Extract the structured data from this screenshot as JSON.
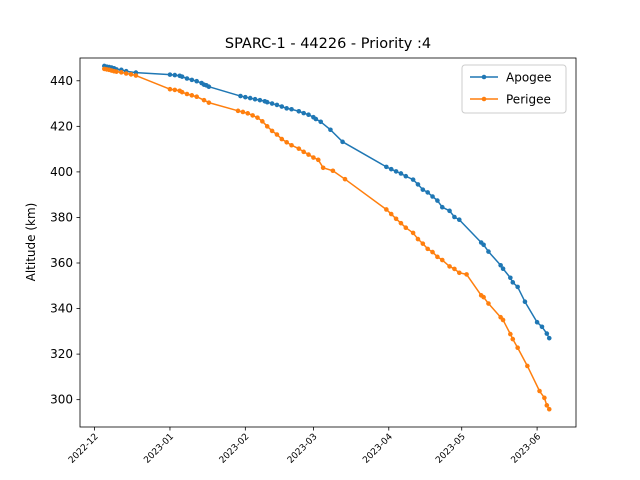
{
  "chart_data": {
    "type": "line",
    "title": "SPARC-1 - 44226 - Priority :4",
    "xlabel": "",
    "ylabel": "Altitude (km)",
    "xlim": [
      "2022-11-25",
      "2023-06-17"
    ],
    "ylim": [
      288,
      450
    ],
    "x_ticks": [
      "2022-12",
      "2023-01",
      "2023-02",
      "2023-03",
      "2023-04",
      "2023-05",
      "2023-06"
    ],
    "y_ticks": [
      300,
      320,
      340,
      360,
      380,
      400,
      420,
      440
    ],
    "grid": false,
    "legend_position": "top-right",
    "colors": {
      "Apogee": "#1f77b4",
      "Perigee": "#ff7f0e"
    },
    "series": [
      {
        "name": "Apogee",
        "x": [
          "2022-12-05",
          "2022-12-06",
          "2022-12-07",
          "2022-12-08",
          "2022-12-09",
          "2022-12-10",
          "2022-12-12",
          "2022-12-14",
          "2022-12-18",
          "2023-01-01",
          "2023-01-03",
          "2023-01-05",
          "2023-01-06",
          "2023-01-08",
          "2023-01-10",
          "2023-01-12",
          "2023-01-14",
          "2023-01-15",
          "2023-01-16",
          "2023-01-17",
          "2023-01-30",
          "2023-02-01",
          "2023-02-03",
          "2023-02-05",
          "2023-02-07",
          "2023-02-09",
          "2023-02-10",
          "2023-02-12",
          "2023-02-14",
          "2023-02-16",
          "2023-02-18",
          "2023-02-20",
          "2023-02-23",
          "2023-02-25",
          "2023-02-27",
          "2023-03-01",
          "2023-03-02",
          "2023-03-04",
          "2023-03-08",
          "2023-03-13",
          "2023-03-31",
          "2023-04-02",
          "2023-04-04",
          "2023-04-06",
          "2023-04-08",
          "2023-04-11",
          "2023-04-13",
          "2023-04-15",
          "2023-04-17",
          "2023-04-19",
          "2023-04-21",
          "2023-04-23",
          "2023-04-26",
          "2023-04-28",
          "2023-04-30",
          "2023-05-09",
          "2023-05-10",
          "2023-05-12",
          "2023-05-17",
          "2023-05-18",
          "2023-05-21",
          "2023-05-22",
          "2023-05-24",
          "2023-05-27",
          "2023-06-01",
          "2023-06-03",
          "2023-06-05",
          "2023-06-06"
        ],
        "values": [
          446.5,
          446.2,
          446,
          445.8,
          445.5,
          445,
          444.8,
          444.2,
          443.6,
          442.7,
          442.5,
          442.2,
          441.8,
          441,
          440.4,
          439.8,
          439,
          438.3,
          438,
          437.4,
          433.3,
          432.8,
          432.4,
          431.9,
          431.5,
          431,
          430.6,
          430,
          429.4,
          428.7,
          427.9,
          427.5,
          426.6,
          425.8,
          425.1,
          424,
          423.2,
          422,
          418.5,
          413.2,
          402.2,
          401.2,
          400.2,
          399.3,
          398.1,
          396.6,
          394.5,
          392.2,
          391,
          389.2,
          387.4,
          384.5,
          382.9,
          380.2,
          379,
          369,
          368,
          365,
          359,
          357.5,
          353.5,
          351.5,
          349.5,
          343,
          334,
          332,
          329,
          327
        ]
      },
      {
        "name": "Perigee",
        "x": [
          "2022-12-05",
          "2022-12-06",
          "2022-12-07",
          "2022-12-08",
          "2022-12-09",
          "2022-12-10",
          "2022-12-12",
          "2022-12-14",
          "2022-12-16",
          "2022-12-18",
          "2023-01-01",
          "2023-01-03",
          "2023-01-05",
          "2023-01-06",
          "2023-01-08",
          "2023-01-10",
          "2023-01-12",
          "2023-01-15",
          "2023-01-17",
          "2023-01-29",
          "2023-01-31",
          "2023-02-02",
          "2023-02-04",
          "2023-02-06",
          "2023-02-08",
          "2023-02-10",
          "2023-02-12",
          "2023-02-14",
          "2023-02-16",
          "2023-02-18",
          "2023-02-20",
          "2023-02-23",
          "2023-02-25",
          "2023-02-27",
          "2023-03-01",
          "2023-03-03",
          "2023-03-05",
          "2023-03-09",
          "2023-03-14",
          "2023-03-31",
          "2023-04-02",
          "2023-04-04",
          "2023-04-06",
          "2023-04-08",
          "2023-04-11",
          "2023-04-13",
          "2023-04-15",
          "2023-04-17",
          "2023-04-19",
          "2023-04-21",
          "2023-04-23",
          "2023-04-26",
          "2023-04-28",
          "2023-04-30",
          "2023-05-03",
          "2023-05-09",
          "2023-05-10",
          "2023-05-12",
          "2023-05-17",
          "2023-05-18",
          "2023-05-21",
          "2023-05-22",
          "2023-05-24",
          "2023-05-28",
          "2023-06-02",
          "2023-06-04",
          "2023-06-05",
          "2023-06-06"
        ],
        "values": [
          445.2,
          445,
          444.8,
          444.5,
          444.2,
          444,
          443.7,
          443.2,
          442.8,
          442.3,
          436.3,
          436,
          435.6,
          435,
          434.2,
          433.6,
          433,
          431.5,
          430.4,
          426.8,
          426.3,
          425.7,
          424.8,
          423.8,
          422.2,
          420,
          418,
          416.4,
          414.4,
          413,
          411.7,
          410.2,
          408.8,
          407.6,
          406.3,
          405.3,
          401.8,
          400.5,
          396.8,
          383.5,
          381.5,
          379.4,
          377.5,
          375.5,
          373.2,
          370.5,
          368.5,
          366.2,
          364.8,
          362.7,
          361.3,
          358.5,
          357.4,
          355.7,
          355,
          345.8,
          345,
          342.2,
          336.2,
          335,
          328.8,
          326.6,
          322.8,
          314.8,
          303.8,
          300.8,
          297.5,
          295.8
        ]
      }
    ]
  }
}
